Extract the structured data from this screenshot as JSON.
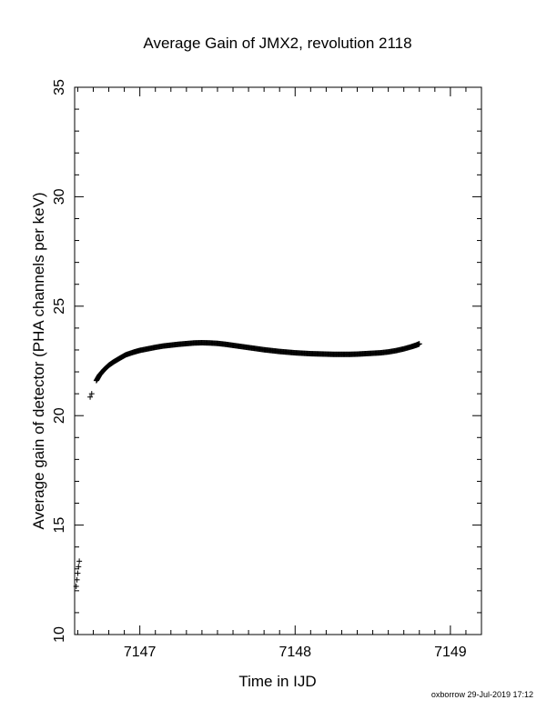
{
  "chart_data": {
    "type": "scatter",
    "title": "Average Gain of JMX2, revolution 2118",
    "xlabel": "Time in IJD",
    "ylabel": "Average gain of detector (PHA channels per keV)",
    "xlim": [
      7146.58,
      7149.2
    ],
    "ylim": [
      10,
      35
    ],
    "x_ticks": [
      {
        "value": 7147,
        "label": "7147"
      },
      {
        "value": 7148,
        "label": "7148"
      },
      {
        "value": 7149,
        "label": "7149"
      }
    ],
    "y_ticks": [
      {
        "value": 10,
        "label": "10"
      },
      {
        "value": 15,
        "label": "15"
      },
      {
        "value": 20,
        "label": "20"
      },
      {
        "value": 25,
        "label": "25"
      },
      {
        "value": 30,
        "label": "30"
      },
      {
        "value": 35,
        "label": "35"
      }
    ],
    "grid": false,
    "marker": "+",
    "color": "#000000",
    "series": [
      {
        "points": [
          [
            7146.59,
            12.2
          ],
          [
            7146.595,
            12.5
          ],
          [
            7146.6,
            12.8
          ],
          [
            7146.605,
            13.1
          ],
          [
            7146.61,
            13.35
          ],
          [
            7146.68,
            20.85
          ],
          [
            7146.69,
            21.0
          ],
          [
            7146.72,
            21.6
          ],
          [
            7146.74,
            21.85
          ],
          [
            7146.77,
            22.1
          ],
          [
            7146.8,
            22.3
          ],
          [
            7146.83,
            22.45
          ],
          [
            7146.87,
            22.62
          ],
          [
            7146.91,
            22.78
          ],
          [
            7146.96,
            22.9
          ],
          [
            7147.0,
            22.98
          ],
          [
            7147.05,
            23.05
          ],
          [
            7147.1,
            23.12
          ],
          [
            7147.15,
            23.18
          ],
          [
            7147.2,
            23.22
          ],
          [
            7147.25,
            23.26
          ],
          [
            7147.3,
            23.29
          ],
          [
            7147.35,
            23.32
          ],
          [
            7147.4,
            23.33
          ],
          [
            7147.45,
            23.32
          ],
          [
            7147.5,
            23.3
          ],
          [
            7147.55,
            23.26
          ],
          [
            7147.6,
            23.21
          ],
          [
            7147.65,
            23.16
          ],
          [
            7147.7,
            23.11
          ],
          [
            7147.75,
            23.06
          ],
          [
            7147.8,
            23.01
          ],
          [
            7147.85,
            22.97
          ],
          [
            7147.9,
            22.93
          ],
          [
            7147.95,
            22.9
          ],
          [
            7148.0,
            22.87
          ],
          [
            7148.05,
            22.85
          ],
          [
            7148.1,
            22.83
          ],
          [
            7148.15,
            22.82
          ],
          [
            7148.2,
            22.81
          ],
          [
            7148.25,
            22.8
          ],
          [
            7148.3,
            22.8
          ],
          [
            7148.35,
            22.8
          ],
          [
            7148.4,
            22.81
          ],
          [
            7148.45,
            22.83
          ],
          [
            7148.5,
            22.85
          ],
          [
            7148.55,
            22.87
          ],
          [
            7148.6,
            22.91
          ],
          [
            7148.65,
            22.97
          ],
          [
            7148.7,
            23.05
          ],
          [
            7148.75,
            23.15
          ],
          [
            7148.78,
            23.22
          ],
          [
            7148.8,
            23.28
          ]
        ]
      }
    ]
  },
  "footer": {
    "stamp": "oxborrow 29-Jul-2019 17:12"
  }
}
